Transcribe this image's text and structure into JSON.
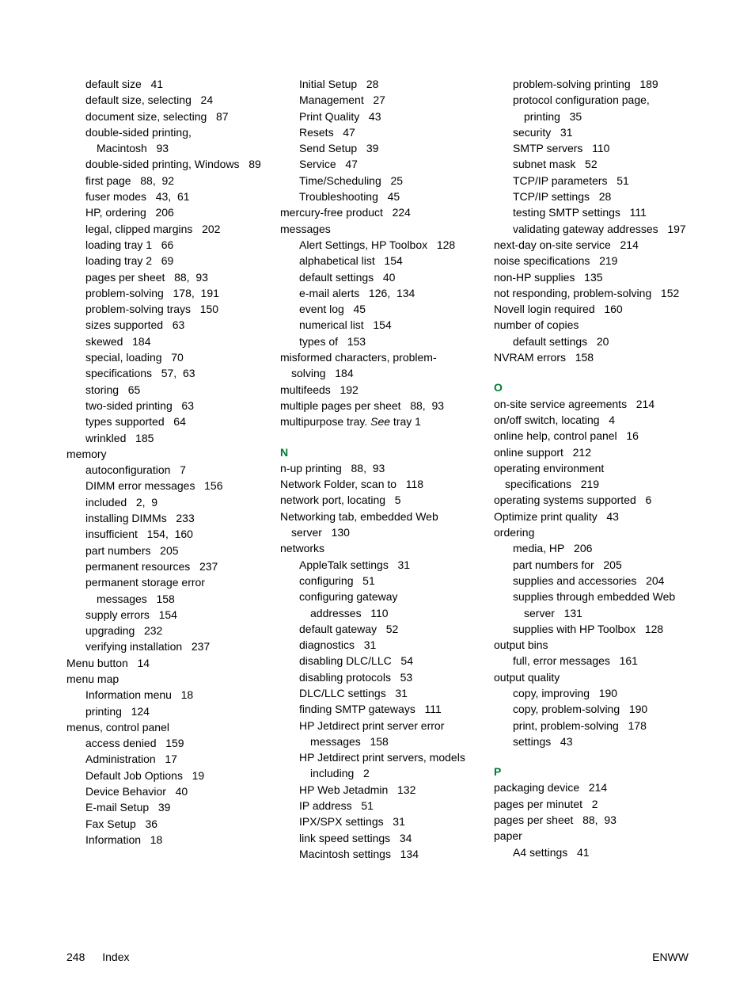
{
  "footer": {
    "pageNumber": "248",
    "sectionLabel": "Index",
    "right": "ENWW"
  },
  "sections": [
    {
      "entries": [
        {
          "text": "default size",
          "pages": [
            "41"
          ],
          "level": 1
        },
        {
          "text": "default size, selecting",
          "pages": [
            "24"
          ],
          "level": 1
        },
        {
          "text": "document size, selecting",
          "pages": [
            "87"
          ],
          "level": 1
        },
        {
          "text": "double-sided printing, Macintosh",
          "pages": [
            "93"
          ],
          "level": 1
        },
        {
          "text": "double-sided printing, Windows",
          "pages": [
            "89"
          ],
          "level": 1
        },
        {
          "text": "first page",
          "pages": [
            "88",
            "92"
          ],
          "level": 1
        },
        {
          "text": "fuser modes",
          "pages": [
            "43",
            "61"
          ],
          "level": 1
        },
        {
          "text": "HP, ordering",
          "pages": [
            "206"
          ],
          "level": 1
        },
        {
          "text": "legal, clipped margins",
          "pages": [
            "202"
          ],
          "level": 1
        },
        {
          "text": "loading tray 1",
          "pages": [
            "66"
          ],
          "level": 1
        },
        {
          "text": "loading tray 2",
          "pages": [
            "69"
          ],
          "level": 1
        },
        {
          "text": "pages per sheet",
          "pages": [
            "88",
            "93"
          ],
          "level": 1
        },
        {
          "text": "problem-solving",
          "pages": [
            "178",
            "191"
          ],
          "level": 1
        },
        {
          "text": "problem-solving trays",
          "pages": [
            "150"
          ],
          "level": 1
        },
        {
          "text": "sizes supported",
          "pages": [
            "63"
          ],
          "level": 1
        },
        {
          "text": "skewed",
          "pages": [
            "184"
          ],
          "level": 1
        },
        {
          "text": "special, loading",
          "pages": [
            "70"
          ],
          "level": 1
        },
        {
          "text": "specifications",
          "pages": [
            "57",
            "63"
          ],
          "level": 1
        },
        {
          "text": "storing",
          "pages": [
            "65"
          ],
          "level": 1
        },
        {
          "text": "two-sided printing",
          "pages": [
            "63"
          ],
          "level": 1
        },
        {
          "text": "types supported",
          "pages": [
            "64"
          ],
          "level": 1
        },
        {
          "text": "wrinkled",
          "pages": [
            "185"
          ],
          "level": 1
        },
        {
          "text": "memory",
          "pages": [],
          "level": 0
        },
        {
          "text": "autoconfiguration",
          "pages": [
            "7"
          ],
          "level": 1
        },
        {
          "text": "DIMM error messages",
          "pages": [
            "156"
          ],
          "level": 1
        },
        {
          "text": "included",
          "pages": [
            "2",
            "9"
          ],
          "level": 1
        },
        {
          "text": "installing DIMMs",
          "pages": [
            "233"
          ],
          "level": 1
        },
        {
          "text": "insufficient",
          "pages": [
            "154",
            "160"
          ],
          "level": 1
        },
        {
          "text": "part numbers",
          "pages": [
            "205"
          ],
          "level": 1
        },
        {
          "text": "permanent resources",
          "pages": [
            "237"
          ],
          "level": 1
        },
        {
          "text": "permanent storage error messages",
          "pages": [
            "158"
          ],
          "level": 1
        },
        {
          "text": "supply errors",
          "pages": [
            "154"
          ],
          "level": 1
        },
        {
          "text": "upgrading",
          "pages": [
            "232"
          ],
          "level": 1
        },
        {
          "text": "verifying installation",
          "pages": [
            "237"
          ],
          "level": 1
        },
        {
          "text": "Menu button",
          "pages": [
            "14"
          ],
          "level": 0
        },
        {
          "text": "menu map",
          "pages": [],
          "level": 0
        },
        {
          "text": "Information menu",
          "pages": [
            "18"
          ],
          "level": 1
        },
        {
          "text": "printing",
          "pages": [
            "124"
          ],
          "level": 1
        },
        {
          "text": "menus, control panel",
          "pages": [],
          "level": 0
        },
        {
          "text": "access denied",
          "pages": [
            "159"
          ],
          "level": 1
        },
        {
          "text": "Administration",
          "pages": [
            "17"
          ],
          "level": 1
        },
        {
          "text": "Default Job Options",
          "pages": [
            "19"
          ],
          "level": 1
        },
        {
          "text": "Device Behavior",
          "pages": [
            "40"
          ],
          "level": 1
        },
        {
          "text": "E-mail Setup",
          "pages": [
            "39"
          ],
          "level": 1
        },
        {
          "text": "Fax Setup",
          "pages": [
            "36"
          ],
          "level": 1
        },
        {
          "text": "Information",
          "pages": [
            "18"
          ],
          "level": 1
        },
        {
          "text": "Initial Setup",
          "pages": [
            "28"
          ],
          "level": 1
        },
        {
          "text": "Management",
          "pages": [
            "27"
          ],
          "level": 1
        },
        {
          "text": "Print Quality",
          "pages": [
            "43"
          ],
          "level": 1
        },
        {
          "text": "Resets",
          "pages": [
            "47"
          ],
          "level": 1
        },
        {
          "text": "Send Setup",
          "pages": [
            "39"
          ],
          "level": 1
        },
        {
          "text": "Service",
          "pages": [
            "47"
          ],
          "level": 1
        },
        {
          "text": "Time/Scheduling",
          "pages": [
            "25"
          ],
          "level": 1
        },
        {
          "text": "Troubleshooting",
          "pages": [
            "45"
          ],
          "level": 1
        },
        {
          "text": "mercury-free product",
          "pages": [
            "224"
          ],
          "level": 0
        },
        {
          "text": "messages",
          "pages": [],
          "level": 0
        },
        {
          "text": "Alert Settings, HP Toolbox",
          "pages": [
            "128"
          ],
          "level": 1
        },
        {
          "text": "alphabetical list",
          "pages": [
            "154"
          ],
          "level": 1
        },
        {
          "text": "default settings",
          "pages": [
            "40"
          ],
          "level": 1
        },
        {
          "text": "e-mail alerts",
          "pages": [
            "126",
            "134"
          ],
          "level": 1
        },
        {
          "text": "event log",
          "pages": [
            "45"
          ],
          "level": 1
        },
        {
          "text": "numerical list",
          "pages": [
            "154"
          ],
          "level": 1
        },
        {
          "text": "types of",
          "pages": [
            "153"
          ],
          "level": 1
        },
        {
          "text": "misformed characters, problem-solving",
          "pages": [
            "184"
          ],
          "level": 0
        },
        {
          "text": "multifeeds",
          "pages": [
            "192"
          ],
          "level": 0
        },
        {
          "text": "multiple pages per sheet",
          "pages": [
            "88",
            "93"
          ],
          "level": 0
        },
        {
          "text": "multipurpose tray. <i>See</i> tray 1",
          "pages": [],
          "level": 0,
          "html": true
        }
      ]
    },
    {
      "heading": "N",
      "entries": [
        {
          "text": "n-up printing",
          "pages": [
            "88",
            "93"
          ],
          "level": 0
        },
        {
          "text": "Network Folder, scan to",
          "pages": [
            "118"
          ],
          "level": 0
        },
        {
          "text": "network port, locating",
          "pages": [
            "5"
          ],
          "level": 0
        },
        {
          "text": "Networking tab, embedded Web server",
          "pages": [
            "130"
          ],
          "level": 0
        },
        {
          "text": "networks",
          "pages": [],
          "level": 0
        },
        {
          "text": "AppleTalk settings",
          "pages": [
            "31"
          ],
          "level": 1
        },
        {
          "text": "configuring",
          "pages": [
            "51"
          ],
          "level": 1
        },
        {
          "text": "configuring gateway addresses",
          "pages": [
            "110"
          ],
          "level": 1
        },
        {
          "text": "default gateway",
          "pages": [
            "52"
          ],
          "level": 1
        },
        {
          "text": "diagnostics",
          "pages": [
            "31"
          ],
          "level": 1
        },
        {
          "text": "disabling DLC/LLC",
          "pages": [
            "54"
          ],
          "level": 1
        },
        {
          "text": "disabling protocols",
          "pages": [
            "53"
          ],
          "level": 1
        },
        {
          "text": "DLC/LLC settings",
          "pages": [
            "31"
          ],
          "level": 1
        },
        {
          "text": "finding SMTP gateways",
          "pages": [
            "111"
          ],
          "level": 1
        },
        {
          "text": "HP Jetdirect print server error messages",
          "pages": [
            "158"
          ],
          "level": 1
        },
        {
          "text": "HP Jetdirect print servers, models including",
          "pages": [
            "2"
          ],
          "level": 1
        },
        {
          "text": "HP Web Jetadmin",
          "pages": [
            "132"
          ],
          "level": 1
        },
        {
          "text": "IP address",
          "pages": [
            "51"
          ],
          "level": 1
        },
        {
          "text": "IPX/SPX settings",
          "pages": [
            "31"
          ],
          "level": 1
        },
        {
          "text": "link speed settings",
          "pages": [
            "34"
          ],
          "level": 1
        },
        {
          "text": "Macintosh settings",
          "pages": [
            "134"
          ],
          "level": 1
        },
        {
          "text": "problem-solving printing",
          "pages": [
            "189"
          ],
          "level": 1
        },
        {
          "text": "protocol configuration page, printing",
          "pages": [
            "35"
          ],
          "level": 1
        },
        {
          "text": "security",
          "pages": [
            "31"
          ],
          "level": 1
        },
        {
          "text": "SMTP servers",
          "pages": [
            "110"
          ],
          "level": 1
        },
        {
          "text": "subnet mask",
          "pages": [
            "52"
          ],
          "level": 1
        },
        {
          "text": "TCP/IP parameters",
          "pages": [
            "51"
          ],
          "level": 1
        },
        {
          "text": "TCP/IP settings",
          "pages": [
            "28"
          ],
          "level": 1
        },
        {
          "text": "testing SMTP settings",
          "pages": [
            "111"
          ],
          "level": 1
        },
        {
          "text": "validating gateway addresses",
          "pages": [
            "197"
          ],
          "level": 1
        },
        {
          "text": "next-day on-site service",
          "pages": [
            "214"
          ],
          "level": 0
        },
        {
          "text": "noise specifications",
          "pages": [
            "219"
          ],
          "level": 0
        },
        {
          "text": "non-HP supplies",
          "pages": [
            "135"
          ],
          "level": 0
        },
        {
          "text": "not responding, problem-solving",
          "pages": [
            "152"
          ],
          "level": 0
        },
        {
          "text": "Novell login required",
          "pages": [
            "160"
          ],
          "level": 0
        },
        {
          "text": "number of copies",
          "pages": [],
          "level": 0
        },
        {
          "text": "default settings",
          "pages": [
            "20"
          ],
          "level": 1
        },
        {
          "text": "NVRAM errors",
          "pages": [
            "158"
          ],
          "level": 0
        }
      ]
    },
    {
      "heading": "O",
      "entries": [
        {
          "text": "on-site service agreements",
          "pages": [
            "214"
          ],
          "level": 0
        },
        {
          "text": "on/off switch, locating",
          "pages": [
            "4"
          ],
          "level": 0
        },
        {
          "text": "online help, control panel",
          "pages": [
            "16"
          ],
          "level": 0
        },
        {
          "text": "online support",
          "pages": [
            "212"
          ],
          "level": 0
        },
        {
          "text": "operating environment specifications",
          "pages": [
            "219"
          ],
          "level": 0
        },
        {
          "text": "operating systems supported",
          "pages": [
            "6"
          ],
          "level": 0
        },
        {
          "text": "Optimize print quality",
          "pages": [
            "43"
          ],
          "level": 0
        },
        {
          "text": "ordering",
          "pages": [],
          "level": 0
        },
        {
          "text": "media, HP",
          "pages": [
            "206"
          ],
          "level": 1
        },
        {
          "text": "part numbers for",
          "pages": [
            "205"
          ],
          "level": 1
        },
        {
          "text": "supplies and accessories",
          "pages": [
            "204"
          ],
          "level": 1
        },
        {
          "text": "supplies through embedded Web server",
          "pages": [
            "131"
          ],
          "level": 1
        },
        {
          "text": "supplies with HP Toolbox",
          "pages": [
            "128"
          ],
          "level": 1
        },
        {
          "text": "output bins",
          "pages": [],
          "level": 0
        },
        {
          "text": "full, error messages",
          "pages": [
            "161"
          ],
          "level": 1
        },
        {
          "text": "output quality",
          "pages": [],
          "level": 0
        },
        {
          "text": "copy, improving",
          "pages": [
            "190"
          ],
          "level": 1
        },
        {
          "text": "copy, problem-solving",
          "pages": [
            "190"
          ],
          "level": 1
        },
        {
          "text": "print, problem-solving",
          "pages": [
            "178"
          ],
          "level": 1
        },
        {
          "text": "settings",
          "pages": [
            "43"
          ],
          "level": 1
        }
      ]
    },
    {
      "heading": "P",
      "entries": [
        {
          "text": "packaging device",
          "pages": [
            "214"
          ],
          "level": 0
        },
        {
          "text": "pages per minutet",
          "pages": [
            "2"
          ],
          "level": 0
        },
        {
          "text": "pages per sheet",
          "pages": [
            "88",
            "93"
          ],
          "level": 0
        },
        {
          "text": "paper",
          "pages": [],
          "level": 0
        },
        {
          "text": "A4 settings",
          "pages": [
            "41"
          ],
          "level": 1
        }
      ]
    }
  ]
}
